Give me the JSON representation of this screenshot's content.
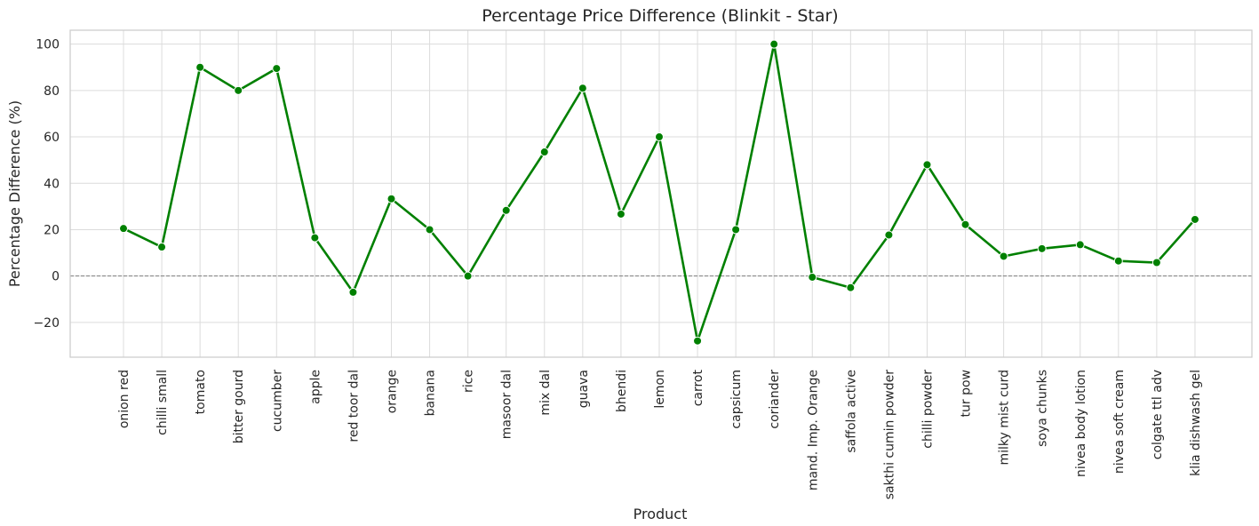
{
  "chart_data": {
    "type": "line",
    "title": "Percentage Price Difference (Blinkit - Star)",
    "xlabel": "Product",
    "ylabel": "Percentage Difference (%)",
    "ylim": [
      -35,
      106
    ],
    "yticks": [
      -20,
      0,
      20,
      40,
      60,
      80,
      100
    ],
    "ytick_labels": [
      "−20",
      "0",
      "20",
      "40",
      "60",
      "80",
      "100"
    ],
    "grid": true,
    "reference_line": {
      "y": 0,
      "style": "dashed",
      "color": "#808080"
    },
    "categories": [
      "onion red",
      "chilli small",
      "tomato",
      "bitter gourd",
      "cucumber",
      "apple",
      "red toor dal",
      "orange",
      "banana",
      "rice",
      "masoor dal",
      "mix dal",
      "guava",
      "bhendi",
      "lemon",
      "carrot",
      "capsicum",
      "coriander",
      "mand. Imp. Orange",
      "saffola active",
      "sakthi cumin powder",
      "chilli powder",
      "tur pow",
      "milky mist curd",
      "soya chunks",
      "nivea body lotion",
      "nivea soft cream",
      "colgate ttl adv",
      "klia dishwash gel"
    ],
    "series": [
      {
        "color": "#008000",
        "values": [
          20.5,
          12.5,
          90.0,
          80.0,
          89.5,
          16.5,
          -7.0,
          33.3,
          20.0,
          0.0,
          28.3,
          53.5,
          81.0,
          26.7,
          60.0,
          -28.0,
          20.0,
          100.0,
          -0.5,
          -5.0,
          17.7,
          48.0,
          22.2,
          8.5,
          11.8,
          13.5,
          6.5,
          5.8,
          24.4
        ]
      }
    ]
  }
}
